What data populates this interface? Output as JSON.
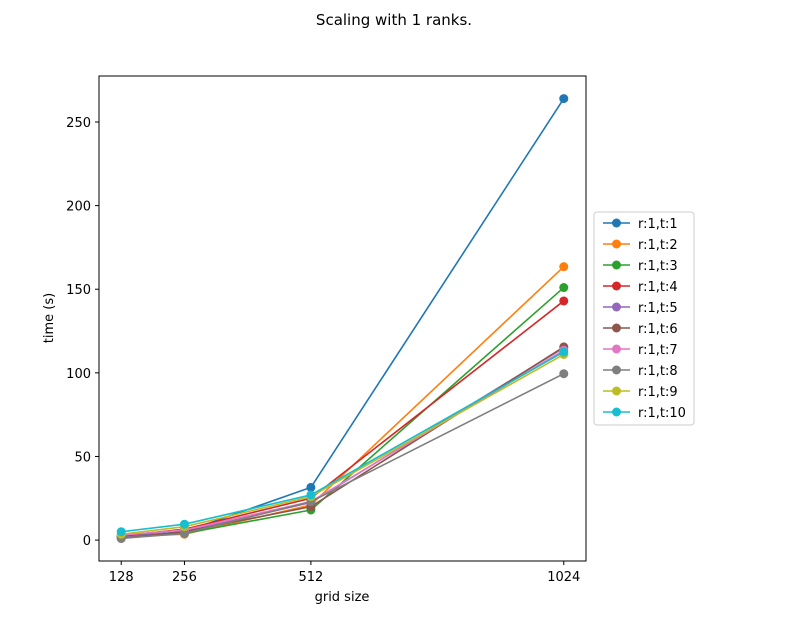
{
  "chart_data": {
    "type": "line",
    "title": "Scaling with 1 ranks.",
    "xlabel": "grid size",
    "ylabel": "time (s)",
    "x": [
      128,
      256,
      512,
      1024
    ],
    "x_ticks": [
      "128",
      "256",
      "512",
      "1024"
    ],
    "y_ticks": [
      "0",
      "50",
      "100",
      "150",
      "200",
      "250"
    ],
    "xlim": [
      83,
      1069
    ],
    "ylim": [
      -12.5,
      277.5
    ],
    "legend_position": "center-right",
    "grid": false,
    "series": [
      {
        "name": "r:1,t:1",
        "color": "#1f77b4",
        "values": [
          2.0,
          5.0,
          31.5,
          264.0
        ]
      },
      {
        "name": "r:1,t:2",
        "color": "#ff7f0e",
        "values": [
          2.0,
          3.5,
          21.0,
          163.5
        ]
      },
      {
        "name": "r:1,t:3",
        "color": "#2ca02c",
        "values": [
          2.0,
          4.0,
          18.0,
          151.0
        ]
      },
      {
        "name": "r:1,t:4",
        "color": "#d62728",
        "values": [
          2.5,
          6.5,
          25.0,
          143.0
        ]
      },
      {
        "name": "r:1,t:5",
        "color": "#9467bd",
        "values": [
          1.5,
          5.0,
          22.5,
          115.0
        ]
      },
      {
        "name": "r:1,t:6",
        "color": "#8c564b",
        "values": [
          1.0,
          5.0,
          20.0,
          115.5
        ]
      },
      {
        "name": "r:1,t:7",
        "color": "#e377c2",
        "values": [
          3.0,
          6.0,
          23.0,
          113.5
        ]
      },
      {
        "name": "r:1,t:8",
        "color": "#7f7f7f",
        "values": [
          1.0,
          4.0,
          23.0,
          99.5
        ]
      },
      {
        "name": "r:1,t:9",
        "color": "#bcbd22",
        "values": [
          3.5,
          8.0,
          26.0,
          111.0
        ]
      },
      {
        "name": "r:1,t:10",
        "color": "#17becf",
        "values": [
          5.0,
          9.5,
          27.0,
          112.5
        ]
      }
    ]
  }
}
